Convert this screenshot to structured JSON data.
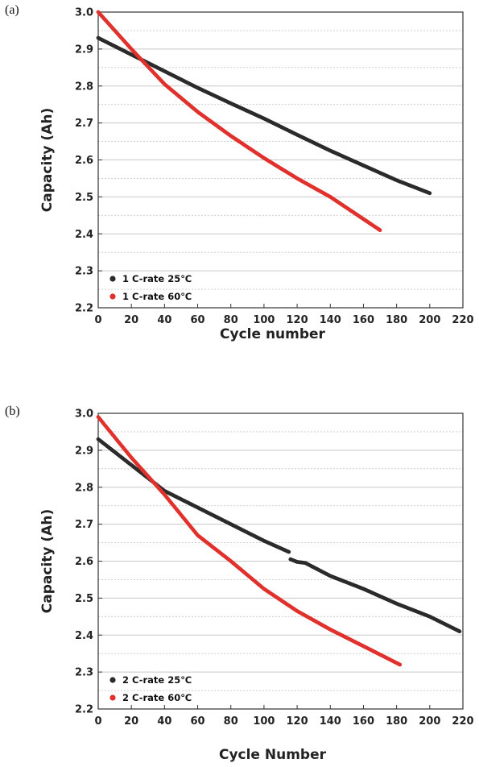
{
  "colors": {
    "series_25C": "#2b2b2b",
    "series_60C": "#e0312c",
    "grid": "#c8c8c8"
  },
  "chart_data": [
    {
      "panel": "(a)",
      "type": "scatter",
      "xlabel": "Cycle number",
      "ylabel": "Capacity (Ah)",
      "xlim": [
        0,
        220
      ],
      "ylim": [
        2.2,
        3.0
      ],
      "xticks": [
        "0",
        "20",
        "40",
        "60",
        "80",
        "100",
        "120",
        "140",
        "160",
        "180",
        "200",
        "220"
      ],
      "yticks": [
        "2.2",
        "2.3",
        "2.4",
        "2.5",
        "2.6",
        "2.7",
        "2.8",
        "2.9",
        "3.0"
      ],
      "grid": "horizontal",
      "legend_position": "bottom-left",
      "series": [
        {
          "name": "1 C-rate 25℃",
          "color": "#2b2b2b",
          "x": [
            0,
            20,
            40,
            60,
            80,
            100,
            120,
            140,
            160,
            180,
            200
          ],
          "y": [
            2.93,
            2.885,
            2.84,
            2.795,
            2.753,
            2.712,
            2.668,
            2.625,
            2.585,
            2.545,
            2.51
          ]
        },
        {
          "name": "1 C-rate 60℃",
          "color": "#e0312c",
          "x": [
            0,
            20,
            40,
            60,
            80,
            100,
            120,
            140,
            160,
            170
          ],
          "y": [
            3.0,
            2.9,
            2.805,
            2.73,
            2.665,
            2.605,
            2.55,
            2.5,
            2.44,
            2.41
          ]
        }
      ]
    },
    {
      "panel": "(b)",
      "type": "scatter",
      "xlabel": "Cycle Number",
      "ylabel": "Capacity (Ah)",
      "xlim": [
        0,
        220
      ],
      "ylim": [
        2.2,
        3.0
      ],
      "xticks": [
        "0",
        "20",
        "40",
        "60",
        "80",
        "100",
        "120",
        "140",
        "160",
        "180",
        "200",
        "220"
      ],
      "yticks": [
        "2.2",
        "2.3",
        "2.4",
        "2.5",
        "2.6",
        "2.7",
        "2.8",
        "2.9",
        "3.0"
      ],
      "grid": "horizontal",
      "legend_position": "bottom-left",
      "series": [
        {
          "name": "2 C-rate 25℃",
          "color": "#2b2b2b",
          "x": [
            0,
            20,
            40,
            60,
            80,
            100,
            110,
            115,
            116,
            120,
            125,
            140,
            160,
            180,
            200,
            218
          ],
          "y": [
            2.93,
            2.86,
            2.79,
            2.745,
            2.7,
            2.655,
            2.635,
            2.625,
            2.605,
            2.598,
            2.595,
            2.56,
            2.525,
            2.485,
            2.45,
            2.41
          ]
        },
        {
          "name": "2 C-rate 60℃",
          "color": "#e0312c",
          "x": [
            0,
            20,
            40,
            60,
            80,
            100,
            120,
            140,
            160,
            182
          ],
          "y": [
            2.99,
            2.88,
            2.78,
            2.67,
            2.6,
            2.525,
            2.465,
            2.415,
            2.37,
            2.32
          ]
        }
      ]
    }
  ]
}
